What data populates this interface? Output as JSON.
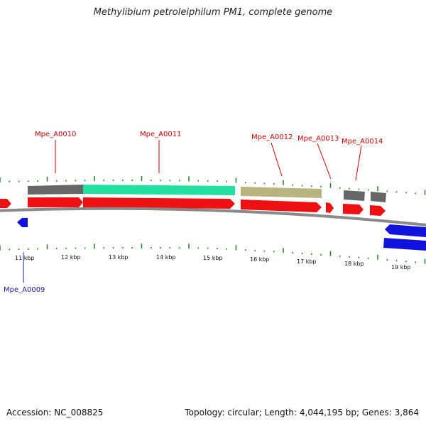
{
  "title": "Methylibium petroleiphilum PM1, complete genome",
  "footer": {
    "accession": "Accession: NC_008825",
    "summary": "Topology: circular; Length: 4,044,195 bp; Genes: 3,864"
  },
  "colors": {
    "forward_cds": "#ee1111",
    "reverse_cds": "#1111dd",
    "label_forward": "#cc0000",
    "label_reverse": "#1a1aa8",
    "backbone": "#8a8a8a",
    "ticks": "#2a8a2a",
    "feature_gray": "#666666",
    "feature_teal": "#22e0a0",
    "feature_khaki": "#b8b480"
  },
  "scale": {
    "ticks": [
      {
        "label": "11 kbp"
      },
      {
        "label": "12 kbp"
      },
      {
        "label": "13 kbp"
      },
      {
        "label": "14 kbp"
      },
      {
        "label": "15 kbp"
      },
      {
        "label": "16 kbp"
      },
      {
        "label": "17 kbp"
      },
      {
        "label": "18 kbp"
      },
      {
        "label": "19 kbp"
      }
    ]
  },
  "gene_labels": [
    {
      "name": "Mpe_A0010",
      "strand": "forward"
    },
    {
      "name": "Mpe_A0011",
      "strand": "forward"
    },
    {
      "name": "Mpe_A0012",
      "strand": "forward"
    },
    {
      "name": "Mpe_A0013",
      "strand": "forward"
    },
    {
      "name": "Mpe_A0014",
      "strand": "forward"
    },
    {
      "name": "Mpe_A0009",
      "strand": "reverse"
    }
  ]
}
